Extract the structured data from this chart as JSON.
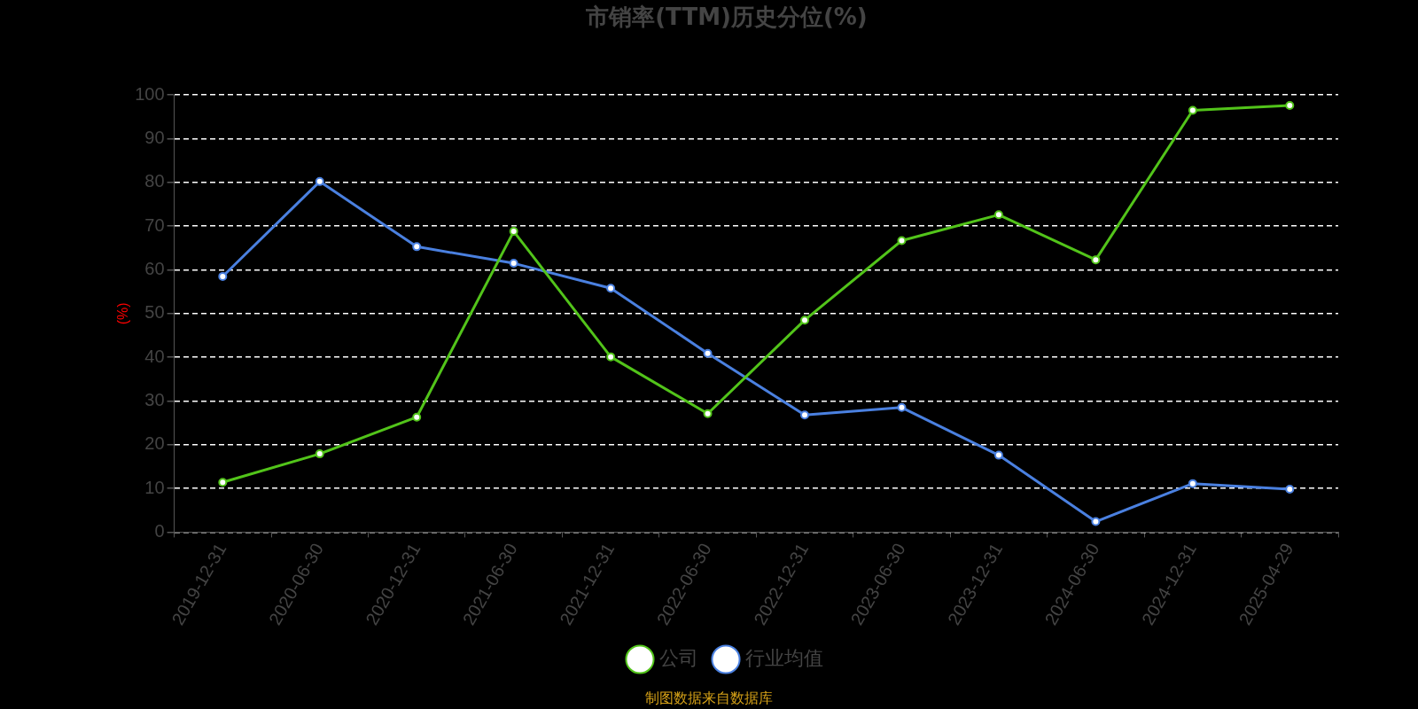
{
  "chart_data": {
    "type": "line",
    "title": "市销率(TTM)历史分位(%)",
    "ylabel": "(%)",
    "categories": [
      "2019-12-31",
      "2020-06-30",
      "2020-12-31",
      "2021-06-30",
      "2021-12-31",
      "2022-06-30",
      "2022-12-31",
      "2023-06-30",
      "2023-12-31",
      "2024-06-30",
      "2024-12-31",
      "2025-04-29"
    ],
    "series": [
      {
        "name": "公司",
        "color": "#52c41a",
        "values": [
          11.4,
          17.9,
          26.3,
          68.8,
          40.1,
          27.1,
          48.5,
          66.7,
          72.6,
          62.3,
          96.5,
          97.6
        ]
      },
      {
        "name": "行业均值",
        "color": "#4a80e0",
        "values": [
          58.5,
          80.2,
          65.3,
          61.5,
          55.8,
          40.9,
          26.8,
          28.5,
          17.6,
          2.4,
          11.1,
          9.8
        ]
      }
    ],
    "ylim": [
      0,
      100
    ],
    "yticks": [
      0,
      10,
      20,
      30,
      40,
      50,
      60,
      70,
      80,
      90,
      100
    ],
    "grid": "y",
    "legend": "bottom",
    "marker": "circle",
    "line_style": "solid",
    "annotations": [
      "制图数据来自数据库"
    ]
  }
}
